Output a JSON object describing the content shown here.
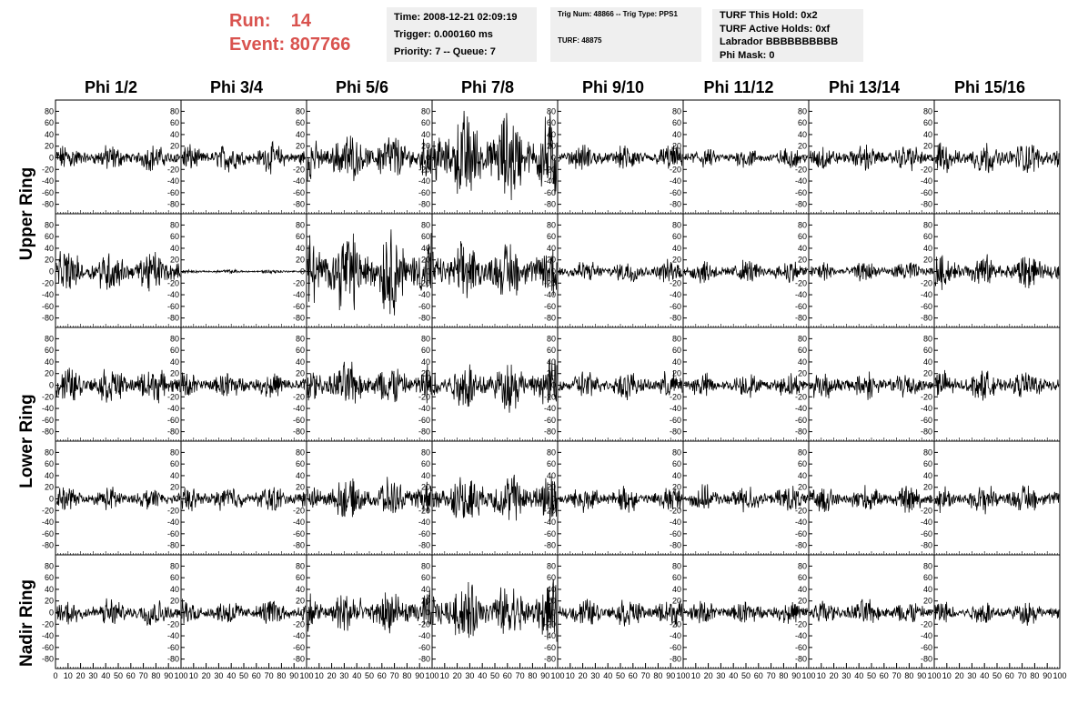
{
  "header": {
    "run_label": "Run:",
    "run_value": "14",
    "event_label": "Event:",
    "event_value": "807766"
  },
  "info_time": {
    "time": "Time: 2008-12-21 02:09:19",
    "trigger": "Trigger: 0.000160 ms",
    "priority": "Priority: 7 -- Queue: 7"
  },
  "info_trig": {
    "trig": "Trig Num: 48866 -- Trig Type: PPS1",
    "turf": "TURF: 48875"
  },
  "info_turf": {
    "hold": "TURF This Hold: 0x2",
    "active": "TURF Active Holds: 0xf",
    "labrador": "Labrador BBBBBBBBBB",
    "phimask": "Phi Mask: 0"
  },
  "columns": [
    "Phi 1/2",
    "Phi 3/4",
    "Phi 5/6",
    "Phi 7/8",
    "Phi 9/10",
    "Phi 11/12",
    "Phi 13/14",
    "Phi 15/16"
  ],
  "rings": [
    "Upper Ring",
    "Lower Ring",
    "Nadir Ring"
  ],
  "chart_data": {
    "type": "line",
    "grid": false,
    "ylim": [
      -90,
      90
    ],
    "xlim": [
      0,
      100
    ],
    "y_ticks": [
      80,
      60,
      40,
      20,
      0,
      -20,
      -40,
      -60,
      -80
    ],
    "x_ticks": [
      0,
      10,
      20,
      30,
      40,
      50,
      60,
      70,
      80,
      90,
      100
    ],
    "rows": 5,
    "cols": 8,
    "amplitude_grid": [
      [
        20,
        22,
        38,
        70,
        20,
        15,
        20,
        25
      ],
      [
        32,
        3,
        65,
        45,
        18,
        18,
        15,
        25
      ],
      [
        28,
        20,
        35,
        38,
        22,
        18,
        22,
        22
      ],
      [
        18,
        20,
        30,
        40,
        20,
        20,
        20,
        22
      ],
      [
        22,
        20,
        35,
        45,
        22,
        18,
        20,
        18
      ]
    ]
  },
  "colors": {
    "header_red": "#d9534f",
    "info_bg": "#efefef",
    "trace": "#000000"
  }
}
